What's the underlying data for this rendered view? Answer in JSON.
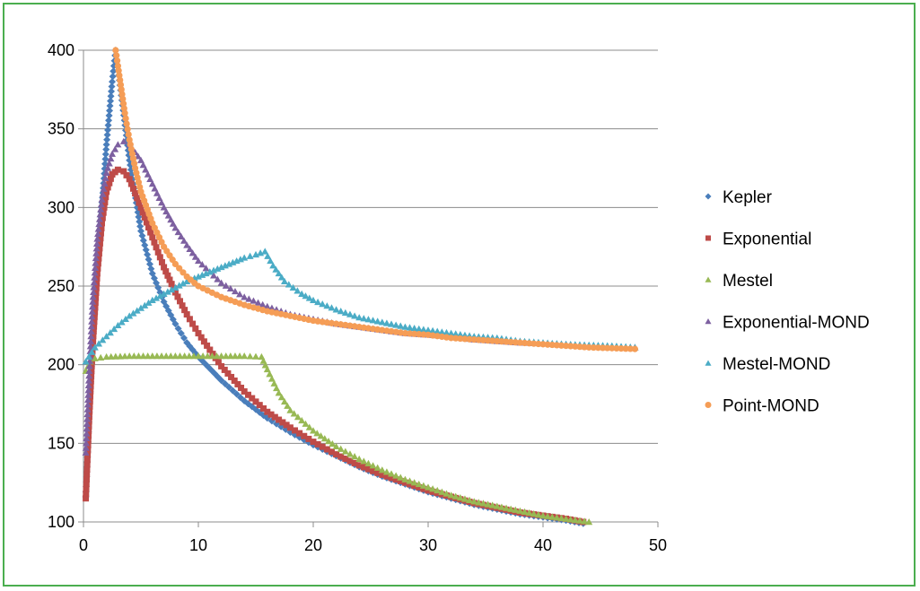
{
  "chart_data": {
    "type": "scatter",
    "title": "",
    "xlabel": "",
    "ylabel": "",
    "xlim": [
      0,
      50
    ],
    "ylim": [
      100,
      400
    ],
    "xticks": [
      "0",
      "10",
      "20",
      "30",
      "40",
      "50"
    ],
    "yticks": [
      "100",
      "150",
      "200",
      "250",
      "300",
      "350",
      "400"
    ],
    "grid": "horizontal",
    "legend_position": "right",
    "series": [
      {
        "name": "Kepler",
        "color": "#4a7ebb",
        "marker": "diamond",
        "points": [
          [
            0.2,
            116
          ],
          [
            0.5,
            170
          ],
          [
            0.8,
            215
          ],
          [
            1.2,
            260
          ],
          [
            1.6,
            300
          ],
          [
            2.0,
            340
          ],
          [
            2.5,
            380
          ],
          [
            2.8,
            400
          ],
          [
            4,
            330
          ],
          [
            5,
            285
          ],
          [
            6,
            258
          ],
          [
            7,
            240
          ],
          [
            8,
            226
          ],
          [
            9,
            214
          ],
          [
            10,
            205
          ],
          [
            12,
            190
          ],
          [
            14,
            177
          ],
          [
            16,
            166
          ],
          [
            18,
            157
          ],
          [
            20,
            149
          ],
          [
            22,
            142
          ],
          [
            24,
            135
          ],
          [
            26,
            129
          ],
          [
            28,
            124
          ],
          [
            30,
            119
          ],
          [
            32,
            115
          ],
          [
            34,
            111
          ],
          [
            36,
            108
          ],
          [
            38,
            105
          ],
          [
            40,
            103
          ],
          [
            42,
            101
          ],
          [
            43.5,
            99
          ]
        ]
      },
      {
        "name": "Exponential",
        "color": "#be4b48",
        "marker": "square",
        "points": [
          [
            0.2,
            115
          ],
          [
            0.5,
            167
          ],
          [
            0.8,
            212
          ],
          [
            1.2,
            258
          ],
          [
            1.6,
            290
          ],
          [
            2.0,
            310
          ],
          [
            2.5,
            321
          ],
          [
            3.0,
            324
          ],
          [
            3.5,
            323
          ],
          [
            4.0,
            318
          ],
          [
            5,
            300
          ],
          [
            6,
            281
          ],
          [
            7,
            262
          ],
          [
            8,
            246
          ],
          [
            9,
            232
          ],
          [
            10,
            220
          ],
          [
            12,
            199
          ],
          [
            14,
            183
          ],
          [
            16,
            170
          ],
          [
            18,
            160
          ],
          [
            20,
            151
          ],
          [
            22,
            143
          ],
          [
            24,
            136
          ],
          [
            26,
            130
          ],
          [
            28,
            125
          ],
          [
            30,
            120
          ],
          [
            32,
            116
          ],
          [
            34,
            112
          ],
          [
            36,
            109
          ],
          [
            38,
            106
          ],
          [
            40,
            104
          ],
          [
            42,
            102
          ],
          [
            43.5,
            100
          ]
        ]
      },
      {
        "name": "Mestel",
        "color": "#98b954",
        "marker": "triangle",
        "points": [
          [
            0.2,
            196
          ],
          [
            0.6,
            202
          ],
          [
            1,
            204
          ],
          [
            2,
            205
          ],
          [
            4,
            205.5
          ],
          [
            6,
            205.5
          ],
          [
            8,
            205.5
          ],
          [
            10,
            205.5
          ],
          [
            12,
            205.5
          ],
          [
            14,
            205.5
          ],
          [
            15.5,
            205
          ],
          [
            16,
            197
          ],
          [
            17,
            182
          ],
          [
            18,
            171
          ],
          [
            20,
            158
          ],
          [
            22,
            148
          ],
          [
            24,
            140
          ],
          [
            26,
            133
          ],
          [
            28,
            127
          ],
          [
            30,
            122
          ],
          [
            32,
            117
          ],
          [
            34,
            113
          ],
          [
            36,
            110
          ],
          [
            38,
            107
          ],
          [
            40,
            104
          ],
          [
            42,
            102
          ],
          [
            44,
            100
          ]
        ]
      },
      {
        "name": "Exponential-MOND",
        "color": "#7d60a0",
        "marker": "triangle",
        "points": [
          [
            0.2,
            144
          ],
          [
            0.5,
            196
          ],
          [
            0.8,
            240
          ],
          [
            1.2,
            280
          ],
          [
            1.6,
            305
          ],
          [
            2.0,
            322
          ],
          [
            2.5,
            334
          ],
          [
            3.0,
            340
          ],
          [
            3.5,
            342
          ],
          [
            4.0,
            340
          ],
          [
            5,
            330
          ],
          [
            6,
            315
          ],
          [
            7,
            300
          ],
          [
            8,
            287
          ],
          [
            9,
            276
          ],
          [
            10,
            266
          ],
          [
            12,
            252
          ],
          [
            14,
            243
          ],
          [
            16,
            237
          ],
          [
            18,
            232
          ],
          [
            20,
            229
          ],
          [
            22,
            226
          ],
          [
            24,
            224
          ],
          [
            26,
            222
          ],
          [
            28,
            220
          ],
          [
            30,
            219
          ],
          [
            32,
            218
          ],
          [
            34,
            216
          ],
          [
            36,
            215
          ],
          [
            38,
            214
          ],
          [
            40,
            213.5
          ],
          [
            42,
            213
          ],
          [
            44,
            212
          ],
          [
            46,
            211.5
          ],
          [
            48,
            211
          ]
        ]
      },
      {
        "name": "Mestel-MOND",
        "color": "#4bacc6",
        "marker": "triangle",
        "points": [
          [
            0.2,
            202
          ],
          [
            1,
            211
          ],
          [
            2,
            218
          ],
          [
            3,
            225
          ],
          [
            4,
            231
          ],
          [
            5,
            236
          ],
          [
            6,
            241
          ],
          [
            7,
            245
          ],
          [
            8,
            249
          ],
          [
            9,
            253
          ],
          [
            10,
            256
          ],
          [
            11,
            259
          ],
          [
            12,
            262
          ],
          [
            13,
            265
          ],
          [
            14,
            268
          ],
          [
            15,
            270
          ],
          [
            15.8,
            272
          ],
          [
            16.5,
            263
          ],
          [
            17.5,
            253
          ],
          [
            19,
            245
          ],
          [
            20,
            241
          ],
          [
            22,
            235
          ],
          [
            24,
            230
          ],
          [
            26,
            227
          ],
          [
            28,
            224
          ],
          [
            30,
            222
          ],
          [
            32,
            220
          ],
          [
            34,
            218
          ],
          [
            36,
            217
          ],
          [
            38,
            215
          ],
          [
            40,
            214
          ],
          [
            42,
            213
          ],
          [
            44,
            212.5
          ],
          [
            46,
            212
          ],
          [
            48,
            211
          ]
        ]
      },
      {
        "name": "Point-MOND",
        "color": "#f59d56",
        "marker": "circle",
        "points": [
          [
            2.8,
            400
          ],
          [
            3.0,
            390
          ],
          [
            3.3,
            375
          ],
          [
            3.6,
            360
          ],
          [
            4.0,
            343
          ],
          [
            4.5,
            325
          ],
          [
            5,
            310
          ],
          [
            6,
            290
          ],
          [
            7,
            275
          ],
          [
            8,
            264
          ],
          [
            9,
            256
          ],
          [
            10,
            250
          ],
          [
            12,
            243
          ],
          [
            14,
            238
          ],
          [
            16,
            234
          ],
          [
            18,
            231
          ],
          [
            20,
            228
          ],
          [
            22,
            226
          ],
          [
            24,
            224
          ],
          [
            26,
            222
          ],
          [
            28,
            220
          ],
          [
            30,
            219
          ],
          [
            32,
            217
          ],
          [
            34,
            216
          ],
          [
            36,
            215
          ],
          [
            38,
            214
          ],
          [
            40,
            213
          ],
          [
            42,
            212
          ],
          [
            44,
            211
          ],
          [
            46,
            210.5
          ],
          [
            48,
            210
          ]
        ]
      }
    ]
  }
}
